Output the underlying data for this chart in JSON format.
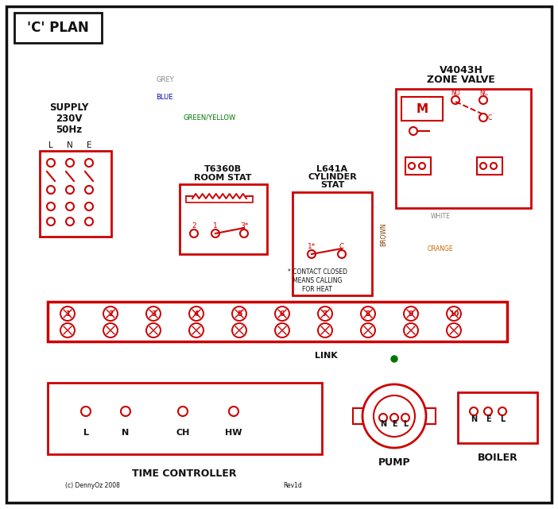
{
  "bg_color": "#ffffff",
  "red": "#cc0000",
  "blue": "#0000bb",
  "green": "#007700",
  "grey": "#888888",
  "brown": "#7B3F00",
  "black": "#111111",
  "orange": "#cc6600",
  "white_wire": "#aaaaaa",
  "title": "'C' PLAN",
  "zone_valve_line1": "V4043H",
  "zone_valve_line2": "ZONE VALVE",
  "supply_text_lines": [
    "SUPPLY",
    "230V",
    "50Hz"
  ],
  "room_stat_line1": "T6360B",
  "room_stat_line2": "ROOM STAT",
  "cyl_stat_line1": "L641A",
  "cyl_stat_line2": "CYLINDER",
  "cyl_stat_line3": "STAT",
  "time_ctrl_label": "TIME CONTROLLER",
  "pump_label": "PUMP",
  "boiler_label": "BOILER",
  "link_label": "LINK",
  "contact_note_lines": [
    "* CONTACT CLOSED",
    "MEANS CALLING",
    "FOR HEAT"
  ],
  "copyright": "(c) DennyOz 2008",
  "rev": "Rev1d",
  "label_grey": "GREY",
  "label_blue": "BLUE",
  "label_gy": "GREEN/YELLOW",
  "label_brown": "BROWN",
  "label_white": "WHITE",
  "label_orange": "ORANGE"
}
